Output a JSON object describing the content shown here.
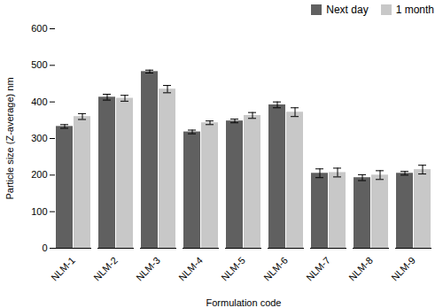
{
  "chart_data": {
    "type": "bar",
    "categories": [
      "NLM-1",
      "NLM-2",
      "NLM-3",
      "NLM-4",
      "NLM-5",
      "NLM-6",
      "NLM-7",
      "NLM-8",
      "NLM-9"
    ],
    "series": [
      {
        "name": "Next day",
        "color": "#606060",
        "values": [
          333,
          413,
          483,
          318,
          348,
          392,
          205,
          193,
          205
        ],
        "errors": [
          5,
          8,
          4,
          5,
          5,
          8,
          12,
          8,
          5
        ]
      },
      {
        "name": "1 month",
        "color": "#c8c8c8",
        "values": [
          360,
          410,
          435,
          343,
          363,
          372,
          207,
          200,
          215
        ],
        "errors": [
          8,
          8,
          10,
          5,
          8,
          12,
          12,
          12,
          12
        ]
      }
    ],
    "xlabel": "Formulation code",
    "ylabel": "Particle size (Z-average) nm",
    "ylim": [
      0,
      600
    ],
    "yticks": [
      0,
      100,
      200,
      300,
      400,
      500,
      600
    ],
    "legend": "upper right",
    "grid": false
  }
}
